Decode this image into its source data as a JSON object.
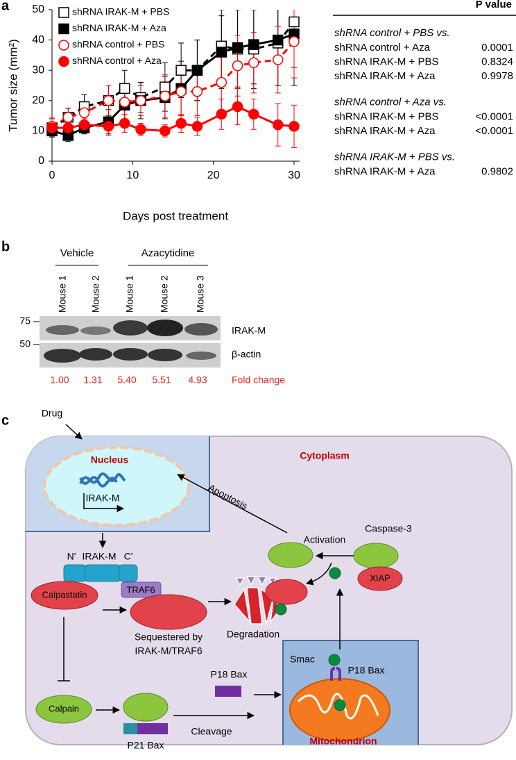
{
  "panel_labels": [
    "a",
    "b",
    "c"
  ],
  "chart_data": {
    "type": "line",
    "xlabel": "Days post treatment",
    "ylabel": "Tumor size (mm²)",
    "x": [
      0,
      2,
      4,
      7,
      9,
      11,
      14,
      16,
      18,
      21,
      23,
      25,
      28,
      30
    ],
    "xlim": [
      0,
      30
    ],
    "ylim": [
      0,
      50
    ],
    "xticks": [
      0,
      10,
      20,
      30
    ],
    "yticks": [
      0,
      10,
      20,
      30,
      40,
      50
    ],
    "legend": "upper left",
    "series": [
      {
        "name": "shRNA IRAK-M + PBS",
        "color": "#000000",
        "marker": "square",
        "filled": false,
        "dashed": true,
        "values": [
          11,
          14.5,
          18,
          20,
          24,
          21,
          24.5,
          30,
          30,
          38,
          37,
          37,
          39,
          46
        ],
        "errors": [
          3,
          3,
          4,
          5,
          6,
          5,
          8,
          9,
          10,
          12,
          13,
          13,
          14,
          15
        ]
      },
      {
        "name": "shRNA IRAK-M + Aza",
        "color": "#000000",
        "marker": "square",
        "filled": true,
        "dashed": false,
        "values": [
          10,
          8.5,
          11,
          13,
          18.5,
          20,
          21,
          24,
          30,
          36,
          37.5,
          38.5,
          40,
          42
        ],
        "errors": [
          2,
          2,
          2,
          4,
          6,
          6,
          7,
          9,
          10,
          12,
          13,
          13,
          15,
          17
        ]
      },
      {
        "name": "shRNA control + PBS",
        "color": "#ff0000",
        "marker": "circle",
        "filled": false,
        "dashed": true,
        "values": [
          11.5,
          14.5,
          16,
          20,
          19.5,
          20,
          21.5,
          23,
          23,
          26,
          31.5,
          32.5,
          33.5,
          39.5
        ],
        "errors": [
          3,
          3,
          3,
          5,
          6,
          5,
          7,
          8,
          8,
          9,
          10,
          10,
          11,
          12
        ]
      },
      {
        "name": "shRNA control + Aza",
        "color": "#ff0000",
        "marker": "circle",
        "filled": true,
        "dashed": false,
        "values": [
          11,
          11,
          12,
          11.5,
          12.5,
          10.5,
          10,
          12.5,
          11.5,
          15.5,
          18,
          15.5,
          12,
          11.5
        ],
        "errors": [
          2,
          2,
          2,
          3,
          3,
          2,
          2,
          3,
          3,
          5,
          6,
          5,
          7,
          7
        ]
      }
    ]
  },
  "pvalue_table": {
    "header": "P value",
    "groups": [
      {
        "title": "shRNA control + PBS vs.",
        "rows": [
          {
            "label": "shRNA control + Aza",
            "value": "0.0001"
          },
          {
            "label": "shRNA IRAK-M + PBS",
            "value": "0.8324"
          },
          {
            "label": "shRNA IRAK-M + Aza",
            "value": "0.9978"
          }
        ]
      },
      {
        "title": "shRNA control + Aza vs.",
        "rows": [
          {
            "label": "shRNA IRAK-M + PBS",
            "value": "<0.0001"
          },
          {
            "label": "shRNA IRAK-M + Aza",
            "value": "<0.0001"
          }
        ]
      },
      {
        "title": "shRNA IRAK-M + PBS vs.",
        "rows": [
          {
            "label": "shRNA IRAK-M + Aza",
            "value": "0.9802"
          }
        ]
      }
    ]
  },
  "blot": {
    "groups": [
      "Vehicle",
      "Azacytidine"
    ],
    "lanes": [
      "Mouse 1",
      "Mouse 2",
      "Mouse 1",
      "Mouse 2",
      "Mouse 3"
    ],
    "markers": [
      75,
      50
    ],
    "proteins": [
      "IRAK-M",
      "β-actin"
    ],
    "fold_changes": [
      "1.00",
      "1.31",
      "5.40",
      "5.51",
      "4.93"
    ],
    "fold_label": "Fold change"
  },
  "diagram": {
    "drug": "Drug",
    "nucleus": "Nucleus",
    "cytoplasm": "Cytoplasm",
    "gene": "IRAK-M",
    "n_term": "N'",
    "protein": "IRAK-M",
    "c_term": "C'",
    "traf6": "TRAF6",
    "calpastatin": "Calpastatin",
    "sequestered_1": "Sequestered by",
    "sequestered_2": "IRAK-M/TRAF6",
    "degradation": "Degradation",
    "calpain": "Calpain",
    "p21": "P21 Bax",
    "cleavage": "Cleavage",
    "p18": "P18 Bax",
    "smac": "Smac",
    "p18_mito": "P18 Bax",
    "mitochondrion": "Mitochondrion",
    "apoptosis": "Apoptosis",
    "activation": "Activation",
    "caspase": "Caspase-3",
    "xiap": "XIAP"
  }
}
